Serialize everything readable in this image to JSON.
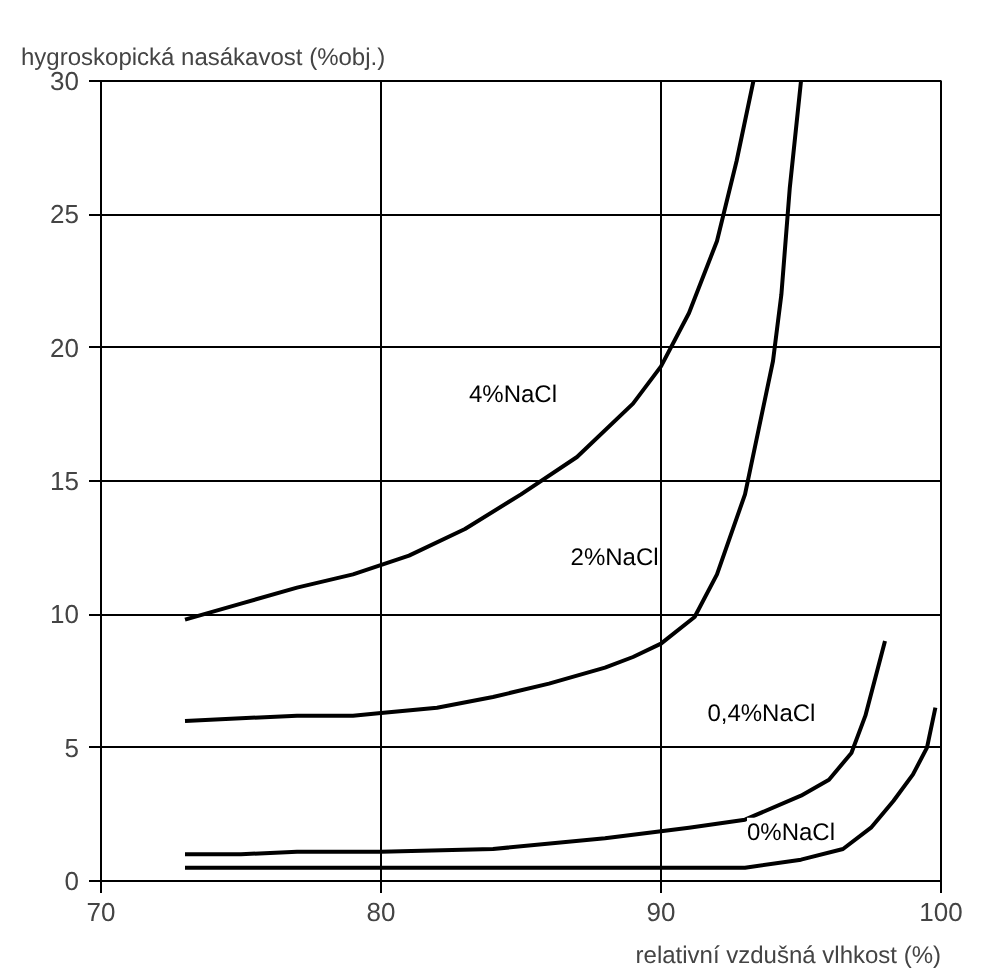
{
  "chart_data": {
    "type": "line",
    "xlabel": "relativní vzdušná vlhkost (%)",
    "ylabel": "hygroskopická nasákavost (%obj.)",
    "xlim": [
      70,
      100
    ],
    "xticks": [
      70,
      80,
      90,
      100
    ],
    "ylim": [
      0,
      30
    ],
    "yticks": [
      0,
      5,
      10,
      15,
      20,
      25,
      30
    ],
    "grid": true,
    "marker": "none",
    "line_style": "solid",
    "series": [
      {
        "name": "4%NaCl",
        "color": "#000000",
        "x": [
          73,
          75,
          77,
          79,
          81,
          83,
          85,
          87,
          89,
          90,
          91,
          92,
          92.7,
          93.3
        ],
        "values": [
          9.8,
          10.4,
          11.0,
          11.5,
          12.2,
          13.2,
          14.5,
          15.9,
          17.9,
          19.3,
          21.3,
          24.0,
          27.0,
          30.0
        ]
      },
      {
        "name": "2%NaCl",
        "color": "#000000",
        "x": [
          73,
          75,
          77,
          79,
          80,
          82,
          84,
          86,
          88,
          89,
          90,
          91.2,
          92,
          93,
          93.5,
          94,
          94.3,
          94.6,
          95
        ],
        "values": [
          6.0,
          6.1,
          6.2,
          6.2,
          6.3,
          6.5,
          6.9,
          7.4,
          8.0,
          8.4,
          8.9,
          9.9,
          11.5,
          14.5,
          17.0,
          19.5,
          22.0,
          26.0,
          30.0
        ]
      },
      {
        "name": "0,4%NaCl",
        "color": "#000000",
        "x": [
          73,
          75,
          77,
          80,
          84,
          88,
          91,
          93,
          95,
          96,
          96.8,
          97.3,
          98
        ],
        "values": [
          1.0,
          1.0,
          1.1,
          1.1,
          1.2,
          1.6,
          2.0,
          2.3,
          3.2,
          3.8,
          4.8,
          6.2,
          9.0
        ]
      },
      {
        "name": "0%NaCl",
        "color": "#000000",
        "x": [
          73,
          80,
          90,
          93,
          95,
          96.5,
          97.5,
          98.3,
          99,
          99.5,
          99.8
        ],
        "values": [
          0.5,
          0.5,
          0.5,
          0.5,
          0.8,
          1.2,
          2.0,
          3.0,
          4.0,
          5.0,
          6.5
        ]
      }
    ]
  }
}
